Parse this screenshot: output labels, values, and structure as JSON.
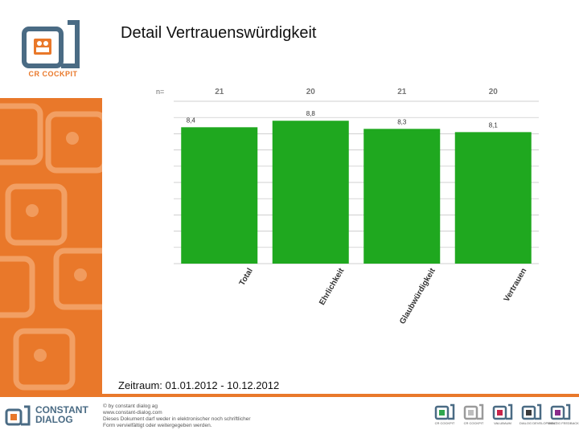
{
  "header": {
    "title": "Detail Vertrauenswürdigkeit"
  },
  "brand": {
    "logo_caption": "CR COCKPIT"
  },
  "colors": {
    "accent": "#e9782a",
    "bar": "#1fa81f",
    "navy": "#4a6b84",
    "grid": "#bfbfbf"
  },
  "chart_data": {
    "type": "bar",
    "categories": [
      "Total",
      "Ehrlichkeit",
      "Glaubwürdigkeit",
      "Vertrauen"
    ],
    "values": [
      8.4,
      8.8,
      8.3,
      8.1
    ],
    "value_labels": [
      "8,4",
      "8,8",
      "8,3",
      "8,1"
    ],
    "n_label": "n=",
    "n_values": [
      "21",
      "20",
      "21",
      "20"
    ],
    "ylim": [
      0,
      10
    ],
    "grid": true,
    "title": "",
    "xlabel": "",
    "ylabel": ""
  },
  "footer": {
    "period": "Zeitraum: 01.01.2012 - 10.12.2012",
    "brand_line1": "CONSTANT",
    "brand_line2": "DIALOG",
    "legal": [
      "© by constant dialog ag",
      "www.constant-dialog.com",
      "Dieses Dokument darf weder in elektronischer noch schriftlicher",
      "Form vervielfältigt oder weitergegeben werden."
    ],
    "products": [
      "CR COCKPIT",
      "CR COCKPIT",
      "VALUBAUM",
      "DIALOG DEVELOPMENT",
      "DIALOG FEEDBACK"
    ]
  }
}
